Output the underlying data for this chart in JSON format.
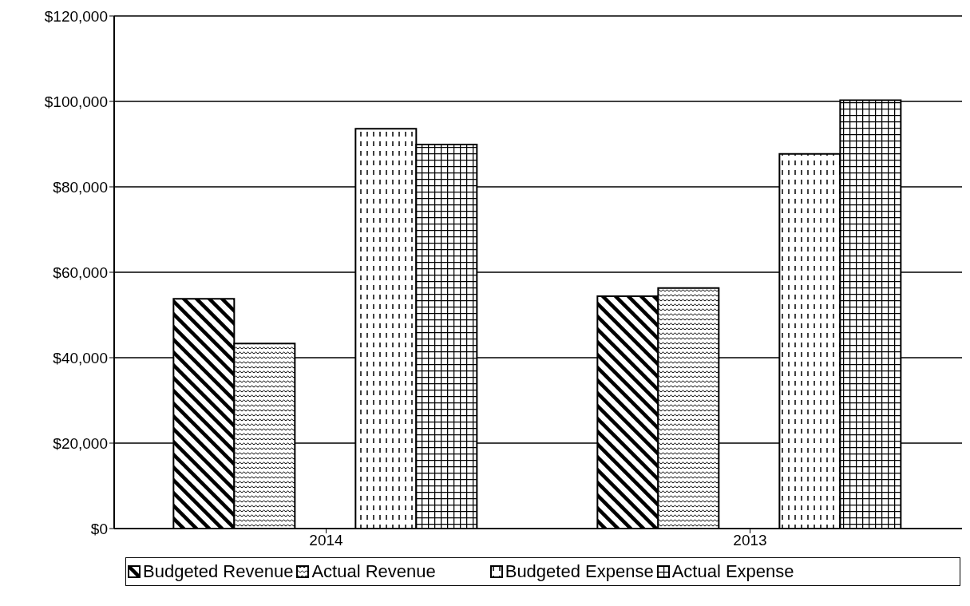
{
  "chart_data": {
    "type": "bar",
    "categories": [
      "2014",
      "2013"
    ],
    "series": [
      {
        "name": "Budgeted Revenue",
        "color": "#000000",
        "values": [
          53800,
          54400
        ]
      },
      {
        "name": "Actual Revenue",
        "color": "#000000",
        "values": [
          43300,
          56300
        ]
      },
      {
        "values": [
          null,
          null
        ]
      },
      {
        "name": "Budgeted Expense",
        "color": "#000000",
        "values": [
          93600,
          87700
        ]
      },
      {
        "name": "Actual Expense",
        "color": "#000000",
        "values": [
          89900,
          100300
        ]
      }
    ],
    "ylim": [
      0,
      120000
    ],
    "yticks": [
      {
        "value": 0,
        "label": "$0"
      },
      {
        "value": 20000,
        "label": "$20,000"
      },
      {
        "value": 40000,
        "label": "$40,000"
      },
      {
        "value": 60000,
        "label": "$60,000"
      },
      {
        "value": 80000,
        "label": "$80,000"
      },
      {
        "value": 100000,
        "label": "$100,000"
      },
      {
        "value": 120000,
        "label": "$120,000"
      }
    ],
    "grid": "y",
    "legend": "bottom"
  }
}
